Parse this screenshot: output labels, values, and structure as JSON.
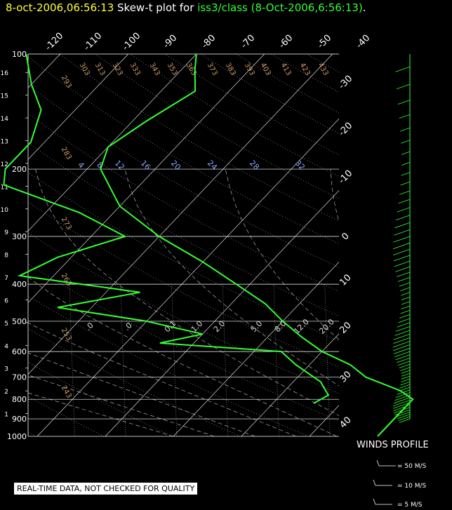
{
  "title": {
    "date": "8-oct-2006,06:56:13",
    "mid": " Skew-t plot for ",
    "station": "iss3/class (8-Oct-2006,6:56:13)",
    "end": "."
  },
  "chart_data": {
    "type": "skew-t",
    "pressure_ticks": [
      "100",
      "200",
      "300",
      "400",
      "500",
      "600",
      "700",
      "800",
      "900",
      "1000"
    ],
    "pressure_values": [
      100,
      200,
      300,
      400,
      500,
      600,
      700,
      800,
      900,
      1000
    ],
    "height_ticks": [
      "1",
      "2",
      "3",
      "4",
      "5",
      "6",
      "7",
      "8",
      "9",
      "10",
      "11",
      "12",
      "13",
      "14",
      "15",
      "16"
    ],
    "height_km": [
      1,
      2,
      3,
      4,
      5,
      6,
      7,
      8,
      9,
      10,
      11,
      12,
      13,
      14,
      15,
      16
    ],
    "temp_ticks_top": [
      "-120",
      "-110",
      "-100",
      "-90",
      "-80",
      "-70",
      "-60",
      "-50",
      "-40"
    ],
    "temp_ticks_right": [
      "-30",
      "-20",
      "-10",
      "0",
      "10",
      "20",
      "30",
      "40"
    ],
    "theta_labels": [
      "293",
      "303",
      "313",
      "323",
      "333",
      "343",
      "353",
      "363",
      "373",
      "383",
      "393",
      "403",
      "413",
      "423",
      "433",
      "283",
      "273",
      "263",
      "253",
      "243"
    ],
    "mixing_ratio_labels": [
      "4",
      "8",
      "12",
      "16",
      "20",
      "24",
      "28",
      "32"
    ],
    "saturation_labels": [
      ".0",
      ".0",
      "0.1",
      "1.0",
      "2.0",
      "5.0",
      "8.0",
      "12.0",
      "20.0"
    ],
    "temperature_profile": [
      [
        1000,
        20
      ],
      [
        850,
        20
      ],
      [
        800,
        20
      ],
      [
        760,
        17
      ],
      [
        700,
        10
      ],
      [
        650,
        6
      ],
      [
        600,
        0
      ],
      [
        550,
        -5
      ],
      [
        500,
        -10
      ],
      [
        450,
        -15
      ],
      [
        400,
        -22
      ],
      [
        350,
        -30
      ],
      [
        300,
        -40
      ],
      [
        250,
        -50
      ],
      [
        200,
        -58
      ],
      [
        175,
        -60
      ],
      [
        150,
        -58
      ],
      [
        125,
        -55
      ],
      [
        110,
        -58
      ],
      [
        100,
        -60
      ]
    ],
    "dewpoint_profile": [
      [
        820,
        6
      ],
      [
        780,
        7
      ],
      [
        720,
        4
      ],
      [
        650,
        -2
      ],
      [
        600,
        -6
      ],
      [
        570,
        -25
      ],
      [
        540,
        -20
      ],
      [
        500,
        -30
      ],
      [
        460,
        -45
      ],
      [
        420,
        -35
      ],
      [
        380,
        -55
      ],
      [
        340,
        -52
      ],
      [
        300,
        -45
      ],
      [
        260,
        -55
      ],
      [
        220,
        -70
      ],
      [
        200,
        -72
      ],
      [
        170,
        -72
      ],
      [
        140,
        -75
      ],
      [
        120,
        -80
      ],
      [
        100,
        -85
      ]
    ],
    "colors": {
      "temperature": "#33ff33",
      "dewpoint": "#33ff33",
      "wind": "#33ff33",
      "grid": "#ffffff",
      "theta": "#cc9966",
      "mixing": "#88aaff"
    }
  },
  "winds": {
    "title": "WINDS PROFILE",
    "legend": [
      "= 50 M/S",
      "= 10 M/S",
      "= 5 M/S"
    ]
  },
  "note": "REAL-TIME DATA, NOT CHECKED FOR QUALITY"
}
